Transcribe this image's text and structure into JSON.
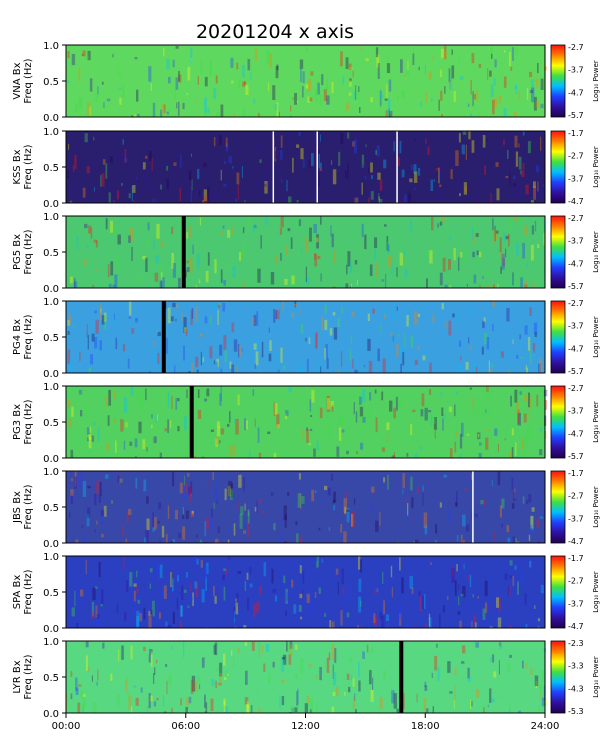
{
  "title": "20201204  x axis",
  "side_note": "",
  "chart_data": {
    "type": "heatmap",
    "title": "20201204  x axis",
    "xlabel": "",
    "x_ticks": [
      "00:00",
      "06:00",
      "12:00",
      "18:00",
      "24:00"
    ],
    "xlim_hours": [
      0,
      24
    ],
    "colorbar_label": "Log₁₀ Power",
    "panels": [
      {
        "station": "VNA",
        "ylabel": "VNA Bx\nFreq (Hz)",
        "ylim": [
          0.0,
          1.0
        ],
        "y_ticks": [
          "0.0",
          "0.5",
          "1.0"
        ],
        "colorbar_ticks": [
          "-2.7",
          "-3.7",
          "-4.7",
          "-5.7"
        ],
        "base_color": "#5fd860",
        "gaps": []
      },
      {
        "station": "KSS",
        "ylabel": "KSS Bx\nFreq (Hz)",
        "ylim": [
          0.0,
          1.0
        ],
        "y_ticks": [
          "0.0",
          "0.5",
          "1.0"
        ],
        "colorbar_ticks": [
          "-1.7",
          "-2.7",
          "-3.7",
          "-4.7"
        ],
        "base_color": "#2a1f6e",
        "gaps": [
          10.4,
          12.6,
          16.6
        ]
      },
      {
        "station": "PG5",
        "ylabel": "PG5 Bx\nFreq (Hz)",
        "ylim": [
          0.0,
          1.0
        ],
        "y_ticks": [
          "0.0",
          "0.5",
          "1.0"
        ],
        "colorbar_ticks": [
          "-2.7",
          "-3.7",
          "-4.7",
          "-5.7"
        ],
        "base_color": "#4cc870",
        "gaps": [
          5.9
        ]
      },
      {
        "station": "PG4",
        "ylabel": "PG4 Bx\nFreq (Hz)",
        "ylim": [
          0.0,
          1.0
        ],
        "y_ticks": [
          "0.0",
          "0.5",
          "1.0"
        ],
        "colorbar_ticks": [
          "-2.7",
          "-3.7",
          "-4.7",
          "-5.7"
        ],
        "base_color": "#3aa0e0",
        "gaps": [
          4.9
        ]
      },
      {
        "station": "PG3",
        "ylabel": "PG3 Bx\nFreq (Hz)",
        "ylim": [
          0.0,
          1.0
        ],
        "y_ticks": [
          "0.0",
          "0.5",
          "1.0"
        ],
        "colorbar_ticks": [
          "-2.7",
          "-3.7",
          "-4.7",
          "-5.7"
        ],
        "base_color": "#52d060",
        "gaps": [
          6.3
        ]
      },
      {
        "station": "JBS",
        "ylabel": "JBS Bx\nFreq (Hz)",
        "ylim": [
          0.0,
          1.0
        ],
        "y_ticks": [
          "0.0",
          "0.5",
          "1.0"
        ],
        "colorbar_ticks": [
          "-1.7",
          "-2.7",
          "-3.7",
          "-4.7"
        ],
        "base_color": "#3848a8",
        "gaps": [
          20.4
        ]
      },
      {
        "station": "SPA",
        "ylabel": "SPA Bx\nFreq (Hz)",
        "ylim": [
          0.0,
          1.0
        ],
        "y_ticks": [
          "0.0",
          "0.5",
          "1.0"
        ],
        "colorbar_ticks": [
          "-1.7",
          "-2.7",
          "-3.7",
          "-4.7"
        ],
        "base_color": "#2a40c0",
        "gaps": []
      },
      {
        "station": "LYR",
        "ylabel": "LYR Bx\nFreq (Hz)",
        "ylim": [
          0.0,
          1.0
        ],
        "y_ticks": [
          "0.0",
          "0.5",
          "1.0"
        ],
        "colorbar_ticks": [
          "-2.3",
          "-3.3",
          "-4.3",
          "-5.3"
        ],
        "base_color": "#58d880",
        "gaps": [
          16.8
        ]
      }
    ],
    "colormap": [
      "#ff1010",
      "#ff8000",
      "#ffff00",
      "#40e040",
      "#00c0ff",
      "#2040ff",
      "#3010a0",
      "#200050"
    ]
  }
}
